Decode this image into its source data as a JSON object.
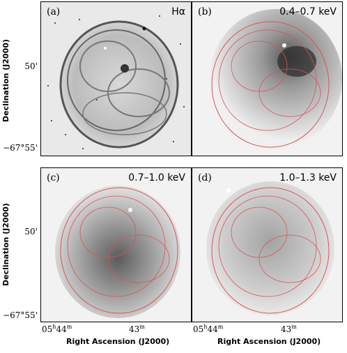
{
  "panels": [
    {
      "label": "(a)",
      "band": "Hα"
    },
    {
      "label": "(b)",
      "band": "0.4–0.7 keV"
    },
    {
      "label": "(c)",
      "band": "0.7–1.0 keV"
    },
    {
      "label": "(d)",
      "band": "1.0–1.3 keV"
    }
  ],
  "axes": {
    "ylabel": "Declination (J2000)",
    "xlabel": "Right Ascension (J2000)",
    "yticks": [
      "50'",
      "−67°55'"
    ],
    "xticks": [
      "05h44m",
      "43m"
    ]
  },
  "colors": {
    "contour": "#e05050",
    "frame": "#000000"
  }
}
